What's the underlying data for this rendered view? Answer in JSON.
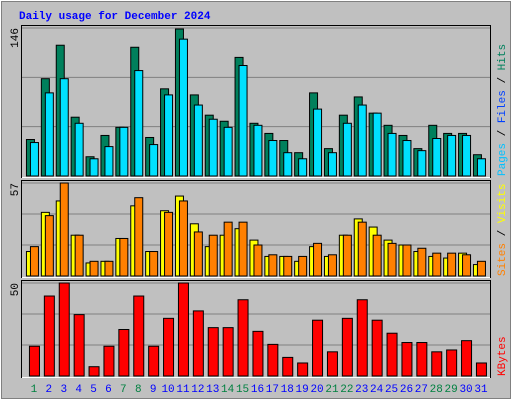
{
  "chart_data": [
    {
      "type": "bar",
      "title": "Daily usage for December 2024",
      "title_color": "#0000ff",
      "ylim": [
        0,
        146
      ],
      "yticks": [
        146
      ],
      "grid_divisions": 3,
      "legend": [
        {
          "text": "Pages",
          "color": "#00c0ff"
        },
        {
          "text": " / ",
          "color": "#000000"
        },
        {
          "text": "Files",
          "color": "#0040ff"
        },
        {
          "text": " / ",
          "color": "#000000"
        },
        {
          "text": "Hits",
          "color": "#00805c"
        }
      ],
      "series": [
        {
          "color": "#00805c",
          "values": [
            36,
            96,
            129,
            58,
            19,
            40,
            48,
            127,
            38,
            86,
            145,
            80,
            60,
            54,
            117,
            52,
            42,
            35,
            23,
            82,
            27,
            60,
            78,
            62,
            50,
            40,
            27,
            50,
            42,
            42,
            21
          ]
        },
        {
          "color": "#00e0ff",
          "values": [
            33,
            82,
            96,
            52,
            17,
            29,
            48,
            104,
            31,
            80,
            135,
            70,
            56,
            48,
            109,
            50,
            35,
            23,
            17,
            66,
            23,
            52,
            70,
            62,
            42,
            35,
            25,
            37,
            40,
            40,
            17
          ]
        }
      ]
    },
    {
      "type": "bar",
      "ylim": [
        0,
        57
      ],
      "yticks": [
        57
      ],
      "grid_divisions": 3,
      "legend": [
        {
          "text": "Sites",
          "color": "#ff8000"
        },
        {
          "text": " / ",
          "color": "#000000"
        },
        {
          "text": "Visits",
          "color": "#ffff00"
        }
      ],
      "series": [
        {
          "color": "#ffff00",
          "values": [
            15,
            39,
            46,
            25,
            8,
            9,
            23,
            43,
            15,
            40,
            49,
            32,
            18,
            25,
            29,
            22,
            12,
            12,
            9,
            18,
            12,
            25,
            35,
            30,
            22,
            19,
            15,
            12,
            11,
            14,
            7
          ]
        },
        {
          "color": "#ff8000",
          "values": [
            18,
            37,
            57,
            25,
            9,
            9,
            23,
            48,
            15,
            39,
            46,
            27,
            25,
            33,
            33,
            19,
            13,
            12,
            12,
            20,
            13,
            25,
            33,
            25,
            20,
            19,
            17,
            14,
            14,
            13,
            9
          ]
        }
      ]
    },
    {
      "type": "bar",
      "ylim": [
        0,
        50
      ],
      "yticks": [
        50
      ],
      "grid_divisions": 3,
      "legend": [
        {
          "text": "KBytes",
          "color": "#ff0000"
        }
      ],
      "series": [
        {
          "color": "#ff0000",
          "values": [
            16,
            43,
            50,
            33,
            5,
            16,
            25,
            43,
            16,
            31,
            50,
            35,
            26,
            26,
            41,
            24,
            17,
            10,
            7,
            30,
            13,
            31,
            41,
            30,
            23,
            18,
            18,
            13,
            14,
            19,
            7
          ]
        }
      ],
      "categories": [
        "1",
        "2",
        "3",
        "4",
        "5",
        "6",
        "7",
        "8",
        "9",
        "10",
        "11",
        "12",
        "13",
        "14",
        "15",
        "16",
        "17",
        "18",
        "19",
        "20",
        "21",
        "22",
        "23",
        "24",
        "25",
        "26",
        "27",
        "28",
        "29",
        "30",
        "31"
      ],
      "label_colors": [
        "#008040",
        "#0000ff",
        "#0000ff",
        "#0000ff",
        "#0000ff",
        "#0000ff",
        "#008040",
        "#008040",
        "#0000ff",
        "#0000ff",
        "#0000ff",
        "#0000ff",
        "#0000ff",
        "#008040",
        "#008040",
        "#0000ff",
        "#0000ff",
        "#0000ff",
        "#0000ff",
        "#0000ff",
        "#008040",
        "#008040",
        "#0000ff",
        "#0000ff",
        "#0000ff",
        "#0000ff",
        "#0000ff",
        "#008040",
        "#008040",
        "#0000ff",
        "#0000ff"
      ]
    }
  ]
}
